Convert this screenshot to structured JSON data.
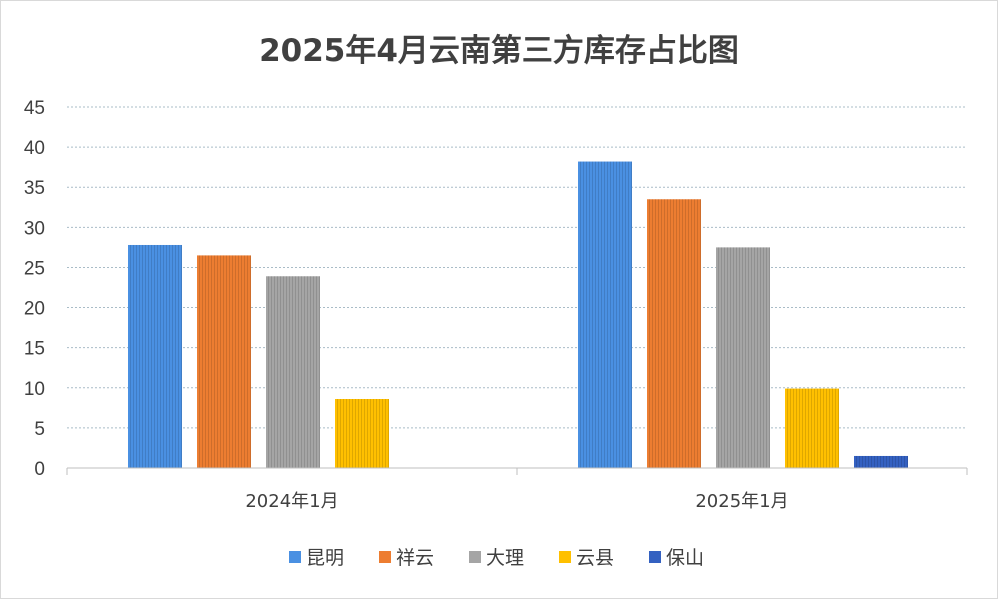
{
  "chart_data": {
    "type": "bar",
    "title": "2025年4月云南第三方库存占比图",
    "xlabel": "",
    "ylabel": "",
    "categories": [
      "2024年1月",
      "2025年1月"
    ],
    "series": [
      {
        "name": "昆明",
        "color": "#4a90e2",
        "values": [
          27.8,
          38.2
        ]
      },
      {
        "name": "祥云",
        "color": "#ed7d31",
        "values": [
          26.5,
          33.5
        ]
      },
      {
        "name": "大理",
        "color": "#a5a5a5",
        "values": [
          23.9,
          27.5
        ]
      },
      {
        "name": "云县",
        "color": "#ffc000",
        "values": [
          8.6,
          9.9
        ]
      },
      {
        "name": "保山",
        "color": "#3461c1",
        "values": [
          null,
          1.5
        ]
      }
    ],
    "ylim": [
      0,
      45
    ],
    "yticks": [
      0,
      5,
      10,
      15,
      20,
      25,
      30,
      35,
      40,
      45
    ],
    "grid": true,
    "legend": "bottom"
  }
}
